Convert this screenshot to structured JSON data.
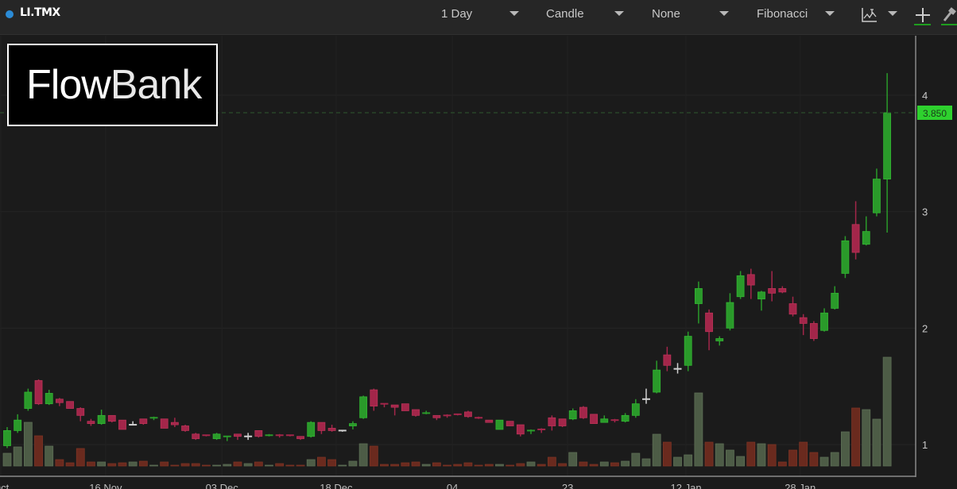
{
  "toolbar": {
    "symbol": "LI.TMX",
    "interval": "1 Day",
    "chart_type": "Candle",
    "indicator": "None",
    "drawing": "Fibonacci",
    "icons": [
      "chart-settings-icon",
      "crosshair-plus-icon",
      "hammer-tool-icon"
    ]
  },
  "logo": {
    "text_a": "Flow",
    "text_b": "Bank"
  },
  "chart_data": {
    "type": "candlestick",
    "symbol": "LI.TMX",
    "last_price_label": "3.850",
    "last_price": 3.85,
    "y_ticks": [
      "1",
      "2",
      "3",
      "4"
    ],
    "y_tick_values": [
      1,
      2,
      3,
      4
    ],
    "x_tick_labels": [
      "Oct",
      "16 Nov",
      "03 Dec",
      "18 Dec",
      "04",
      "23",
      "12 Jan",
      "28 Jan"
    ],
    "x_tick_index": [
      -0.6,
      9.4,
      20.5,
      31.4,
      42.5,
      53.5,
      64.8,
      75.7
    ],
    "ylim": [
      0.8,
      4.5
    ],
    "grid": true,
    "colors": {
      "up": "#2a9a2a",
      "down": "#a3264a",
      "flat": "#d0d0d0",
      "vol_up": "#4d5c46",
      "vol_down": "#6a2a1e",
      "price_label": "#2ed12e"
    },
    "ohlc": [
      [
        0.99,
        1.12,
        1.15,
        0.97
      ],
      [
        1.12,
        1.21,
        1.26,
        1.1
      ],
      [
        1.31,
        1.45,
        1.48,
        1.29
      ],
      [
        1.55,
        1.35,
        1.56,
        1.34
      ],
      [
        1.35,
        1.44,
        1.47,
        1.34
      ],
      [
        1.39,
        1.36,
        1.4,
        1.33
      ],
      [
        1.37,
        1.31,
        1.37,
        1.31
      ],
      [
        1.31,
        1.25,
        1.32,
        1.2
      ],
      [
        1.2,
        1.18,
        1.22,
        1.16
      ],
      [
        1.18,
        1.25,
        1.3,
        1.17
      ],
      [
        1.25,
        1.2,
        1.25,
        1.19
      ],
      [
        1.21,
        1.13,
        1.21,
        1.13
      ],
      [
        1.17,
        1.17,
        1.2,
        1.17
      ],
      [
        1.22,
        1.18,
        1.22,
        1.17
      ],
      [
        1.22,
        1.23,
        1.24,
        1.21
      ],
      [
        1.22,
        1.14,
        1.22,
        1.14
      ],
      [
        1.19,
        1.17,
        1.23,
        1.15
      ],
      [
        1.16,
        1.12,
        1.17,
        1.11
      ],
      [
        1.09,
        1.05,
        1.1,
        1.04
      ],
      [
        1.08,
        1.07,
        1.08,
        1.07
      ],
      [
        1.05,
        1.09,
        1.1,
        1.04
      ],
      [
        1.06,
        1.07,
        1.07,
        1.03
      ],
      [
        1.09,
        1.07,
        1.09,
        1.04
      ],
      [
        1.07,
        1.07,
        1.1,
        1.04
      ],
      [
        1.12,
        1.07,
        1.12,
        1.06
      ],
      [
        1.07,
        1.08,
        1.09,
        1.07
      ],
      [
        1.08,
        1.07,
        1.09,
        1.06
      ],
      [
        1.08,
        1.07,
        1.08,
        1.07
      ],
      [
        1.07,
        1.05,
        1.07,
        1.04
      ],
      [
        1.07,
        1.19,
        1.2,
        1.06
      ],
      [
        1.19,
        1.12,
        1.19,
        1.09
      ],
      [
        1.14,
        1.12,
        1.17,
        1.11
      ],
      [
        1.12,
        1.12,
        1.12,
        1.11
      ],
      [
        1.16,
        1.18,
        1.2,
        1.13
      ],
      [
        1.23,
        1.41,
        1.42,
        1.22
      ],
      [
        1.47,
        1.33,
        1.48,
        1.29
      ],
      [
        1.35,
        1.34,
        1.35,
        1.32
      ],
      [
        1.34,
        1.32,
        1.34,
        1.25
      ],
      [
        1.35,
        1.29,
        1.35,
        1.29
      ],
      [
        1.3,
        1.25,
        1.3,
        1.24
      ],
      [
        1.26,
        1.27,
        1.29,
        1.26
      ],
      [
        1.25,
        1.23,
        1.25,
        1.21
      ],
      [
        1.25,
        1.24,
        1.26,
        1.23
      ],
      [
        1.26,
        1.25,
        1.26,
        1.25
      ],
      [
        1.28,
        1.24,
        1.29,
        1.23
      ],
      [
        1.23,
        1.22,
        1.24,
        1.22
      ],
      [
        1.21,
        1.19,
        1.21,
        1.19
      ],
      [
        1.13,
        1.21,
        1.21,
        1.13
      ],
      [
        1.2,
        1.16,
        1.2,
        1.16
      ],
      [
        1.17,
        1.09,
        1.17,
        1.07
      ],
      [
        1.11,
        1.12,
        1.13,
        1.09
      ],
      [
        1.13,
        1.12,
        1.14,
        1.1
      ],
      [
        1.23,
        1.16,
        1.25,
        1.12
      ],
      [
        1.22,
        1.16,
        1.22,
        1.15
      ],
      [
        1.22,
        1.29,
        1.31,
        1.21
      ],
      [
        1.32,
        1.23,
        1.33,
        1.22
      ],
      [
        1.26,
        1.18,
        1.26,
        1.18
      ],
      [
        1.19,
        1.22,
        1.25,
        1.19
      ],
      [
        1.21,
        1.2,
        1.22,
        1.19
      ],
      [
        1.2,
        1.25,
        1.27,
        1.19
      ],
      [
        1.25,
        1.35,
        1.39,
        1.23
      ],
      [
        1.39,
        1.39,
        1.48,
        1.35
      ],
      [
        1.45,
        1.64,
        1.72,
        1.44
      ],
      [
        1.77,
        1.68,
        1.84,
        1.63
      ],
      [
        1.65,
        1.65,
        1.7,
        1.61
      ],
      [
        1.68,
        1.93,
        1.97,
        1.63
      ],
      [
        2.21,
        2.34,
        2.4,
        2.04
      ],
      [
        2.13,
        1.97,
        2.16,
        1.81
      ],
      [
        1.89,
        1.91,
        1.93,
        1.85
      ],
      [
        2.0,
        2.22,
        2.3,
        1.98
      ],
      [
        2.27,
        2.45,
        2.49,
        2.25
      ],
      [
        2.46,
        2.37,
        2.51,
        2.25
      ],
      [
        2.25,
        2.31,
        2.32,
        2.15
      ],
      [
        2.34,
        2.3,
        2.49,
        2.23
      ],
      [
        2.34,
        2.31,
        2.36,
        2.3
      ],
      [
        2.21,
        2.12,
        2.27,
        2.1
      ],
      [
        2.09,
        2.04,
        2.12,
        1.94
      ],
      [
        2.04,
        1.91,
        2.06,
        1.89
      ],
      [
        1.98,
        2.13,
        2.17,
        1.97
      ],
      [
        2.17,
        2.3,
        2.36,
        2.16
      ],
      [
        2.47,
        2.75,
        2.79,
        2.43
      ],
      [
        2.89,
        2.65,
        3.09,
        2.59
      ],
      [
        2.72,
        2.83,
        2.96,
        2.71
      ],
      [
        2.99,
        3.28,
        3.37,
        2.96
      ],
      [
        3.28,
        3.85,
        4.19,
        2.82
      ]
    ],
    "volume_relative": [
      16,
      24,
      55,
      38,
      25,
      8,
      4,
      22,
      5,
      5,
      3,
      4,
      5,
      6,
      1,
      5,
      1,
      3,
      3,
      1,
      1,
      2,
      5,
      3,
      5,
      1,
      3,
      1,
      1,
      8,
      11,
      8,
      1,
      6,
      28,
      25,
      2,
      2,
      4,
      5,
      2,
      4,
      1,
      2,
      4,
      1,
      2,
      2,
      1,
      3,
      5,
      2,
      11,
      3,
      17,
      5,
      2,
      5,
      4,
      6,
      16,
      9,
      40,
      30,
      11,
      14,
      92,
      30,
      28,
      20,
      12,
      30,
      28,
      27,
      5,
      20,
      30,
      17,
      11,
      17,
      43,
      73,
      71,
      59,
      137
    ]
  }
}
